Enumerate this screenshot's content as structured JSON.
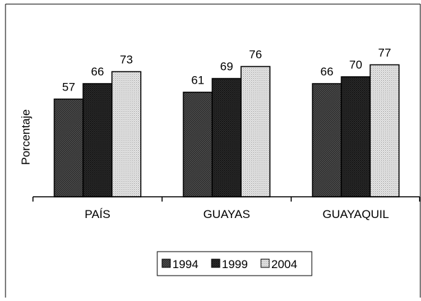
{
  "chart_data": {
    "type": "bar",
    "categories": [
      "PAÍS",
      "GUAYAS",
      "GUAYAQUIL"
    ],
    "series": [
      {
        "name": "1994",
        "values": [
          57,
          61,
          66
        ],
        "pattern": "diag-dark"
      },
      {
        "name": "1999",
        "values": [
          66,
          69,
          70
        ],
        "pattern": "cross-dark"
      },
      {
        "name": "2004",
        "values": [
          73,
          76,
          77
        ],
        "pattern": "dots-light"
      }
    ],
    "ylabel": "Porcentaje",
    "xlabel": "",
    "title": "",
    "ylim": [
      0,
      100
    ],
    "grid": false,
    "legend": "bottom-center",
    "data_labels": true
  }
}
